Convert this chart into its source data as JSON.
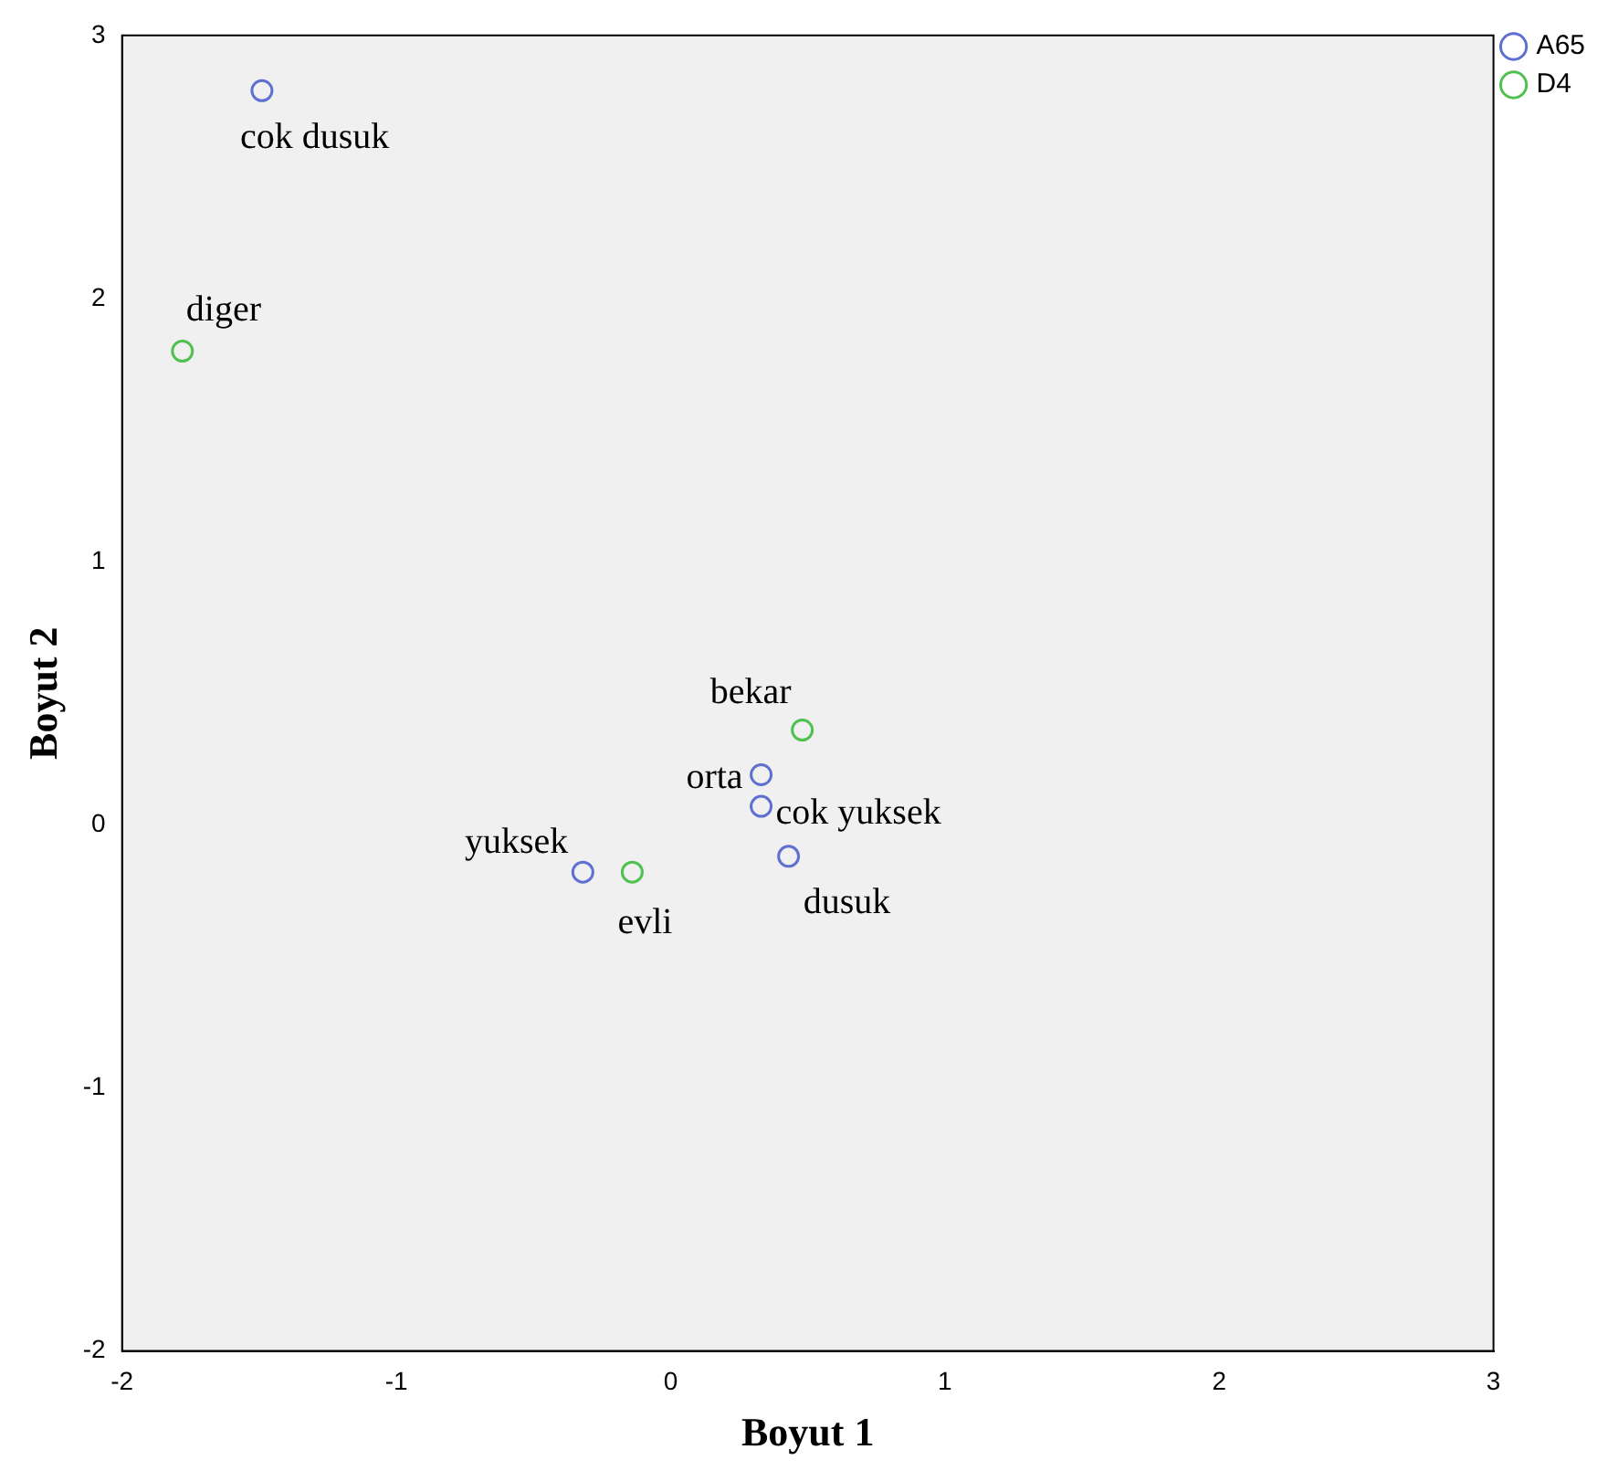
{
  "chart_data": {
    "type": "scatter",
    "xlabel": "Boyut 1",
    "ylabel": "Boyut 2",
    "xlim": [
      -2,
      3
    ],
    "ylim": [
      -2,
      3
    ],
    "xticks": [
      -2,
      -1,
      0,
      1,
      2,
      3
    ],
    "yticks": [
      -2,
      -1,
      0,
      1,
      2,
      3
    ],
    "grid": false,
    "legend": "top right",
    "marker": "circle",
    "series": [
      {
        "name": "A65",
        "color": "#6070d0",
        "x": [
          -1.49,
          0.33,
          0.33,
          0.43,
          -0.32
        ],
        "values": [
          2.79,
          0.19,
          0.07,
          -0.12,
          -0.18
        ]
      },
      {
        "name": "D4",
        "color": "#50c050",
        "x": [
          -1.78,
          0.48,
          -0.14
        ],
        "values": [
          1.8,
          0.36,
          -0.18
        ]
      }
    ],
    "annotations": [
      {
        "text": "cok dusuk",
        "x": -1.49,
        "y": 2.79
      },
      {
        "text": "orta",
        "x": 0.33,
        "y": 0.19
      },
      {
        "text": "cok yuksek",
        "x": 0.33,
        "y": 0.07
      },
      {
        "text": "dusuk",
        "x": 0.43,
        "y": -0.12
      },
      {
        "text": "yuksek",
        "x": -0.32,
        "y": -0.18
      },
      {
        "text": "diger",
        "x": -1.78,
        "y": 1.8
      },
      {
        "text": "bekar",
        "x": 0.48,
        "y": 0.36
      },
      {
        "text": "evli",
        "x": -0.14,
        "y": -0.18
      }
    ]
  }
}
